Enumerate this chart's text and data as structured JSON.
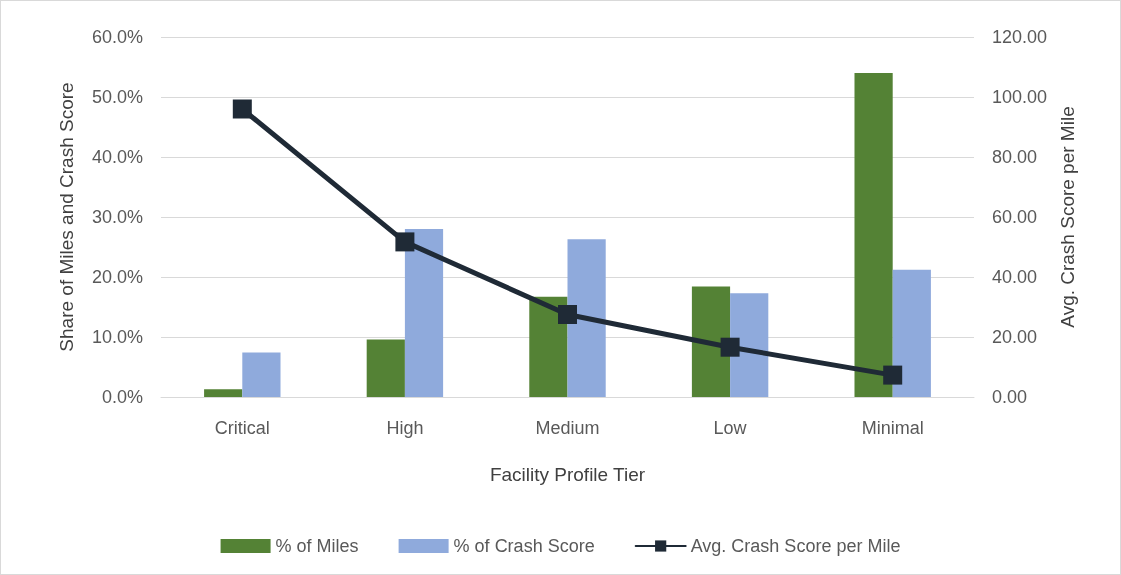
{
  "chart_data": {
    "type": "bar",
    "xlabel": "Facility Profile Tier",
    "ylabel": "Share of Miles and Crash Score",
    "y2label": "Avg. Crash Score per Mile",
    "categories": [
      "Critical",
      "High",
      "Medium",
      "Low",
      "Minimal"
    ],
    "series": [
      {
        "name": "% of Miles",
        "color": "#548235",
        "values": [
          1.3,
          9.6,
          16.7,
          18.4,
          54.0
        ]
      },
      {
        "name": "% of Crash Score",
        "color": "#8faadc",
        "values": [
          7.4,
          28.0,
          26.3,
          17.3,
          21.2
        ]
      },
      {
        "name": "Avg. Crash Score per Mile",
        "type": "line",
        "axis": "y2",
        "color": "#1f2a36",
        "marker": "square",
        "values": [
          96.0,
          51.7,
          27.5,
          16.6,
          7.3
        ]
      }
    ],
    "ylim": [
      0,
      60
    ],
    "yticks": [
      {
        "value": 0,
        "label": "0.0%"
      },
      {
        "value": 10,
        "label": "10.0%"
      },
      {
        "value": 20,
        "label": "20.0%"
      },
      {
        "value": 30,
        "label": "30.0%"
      },
      {
        "value": 40,
        "label": "40.0%"
      },
      {
        "value": 50,
        "label": "50.0%"
      },
      {
        "value": 60,
        "label": "60.0%"
      }
    ],
    "y2lim": [
      0,
      120
    ],
    "y2ticks": [
      {
        "value": 0,
        "label": "0.00"
      },
      {
        "value": 20,
        "label": "20.00"
      },
      {
        "value": 40,
        "label": "40.00"
      },
      {
        "value": 60,
        "label": "60.00"
      },
      {
        "value": 80,
        "label": "80.00"
      },
      {
        "value": 100,
        "label": "100.00"
      },
      {
        "value": 120,
        "label": "120.00"
      }
    ],
    "grid": "y",
    "legend": "bottom"
  }
}
